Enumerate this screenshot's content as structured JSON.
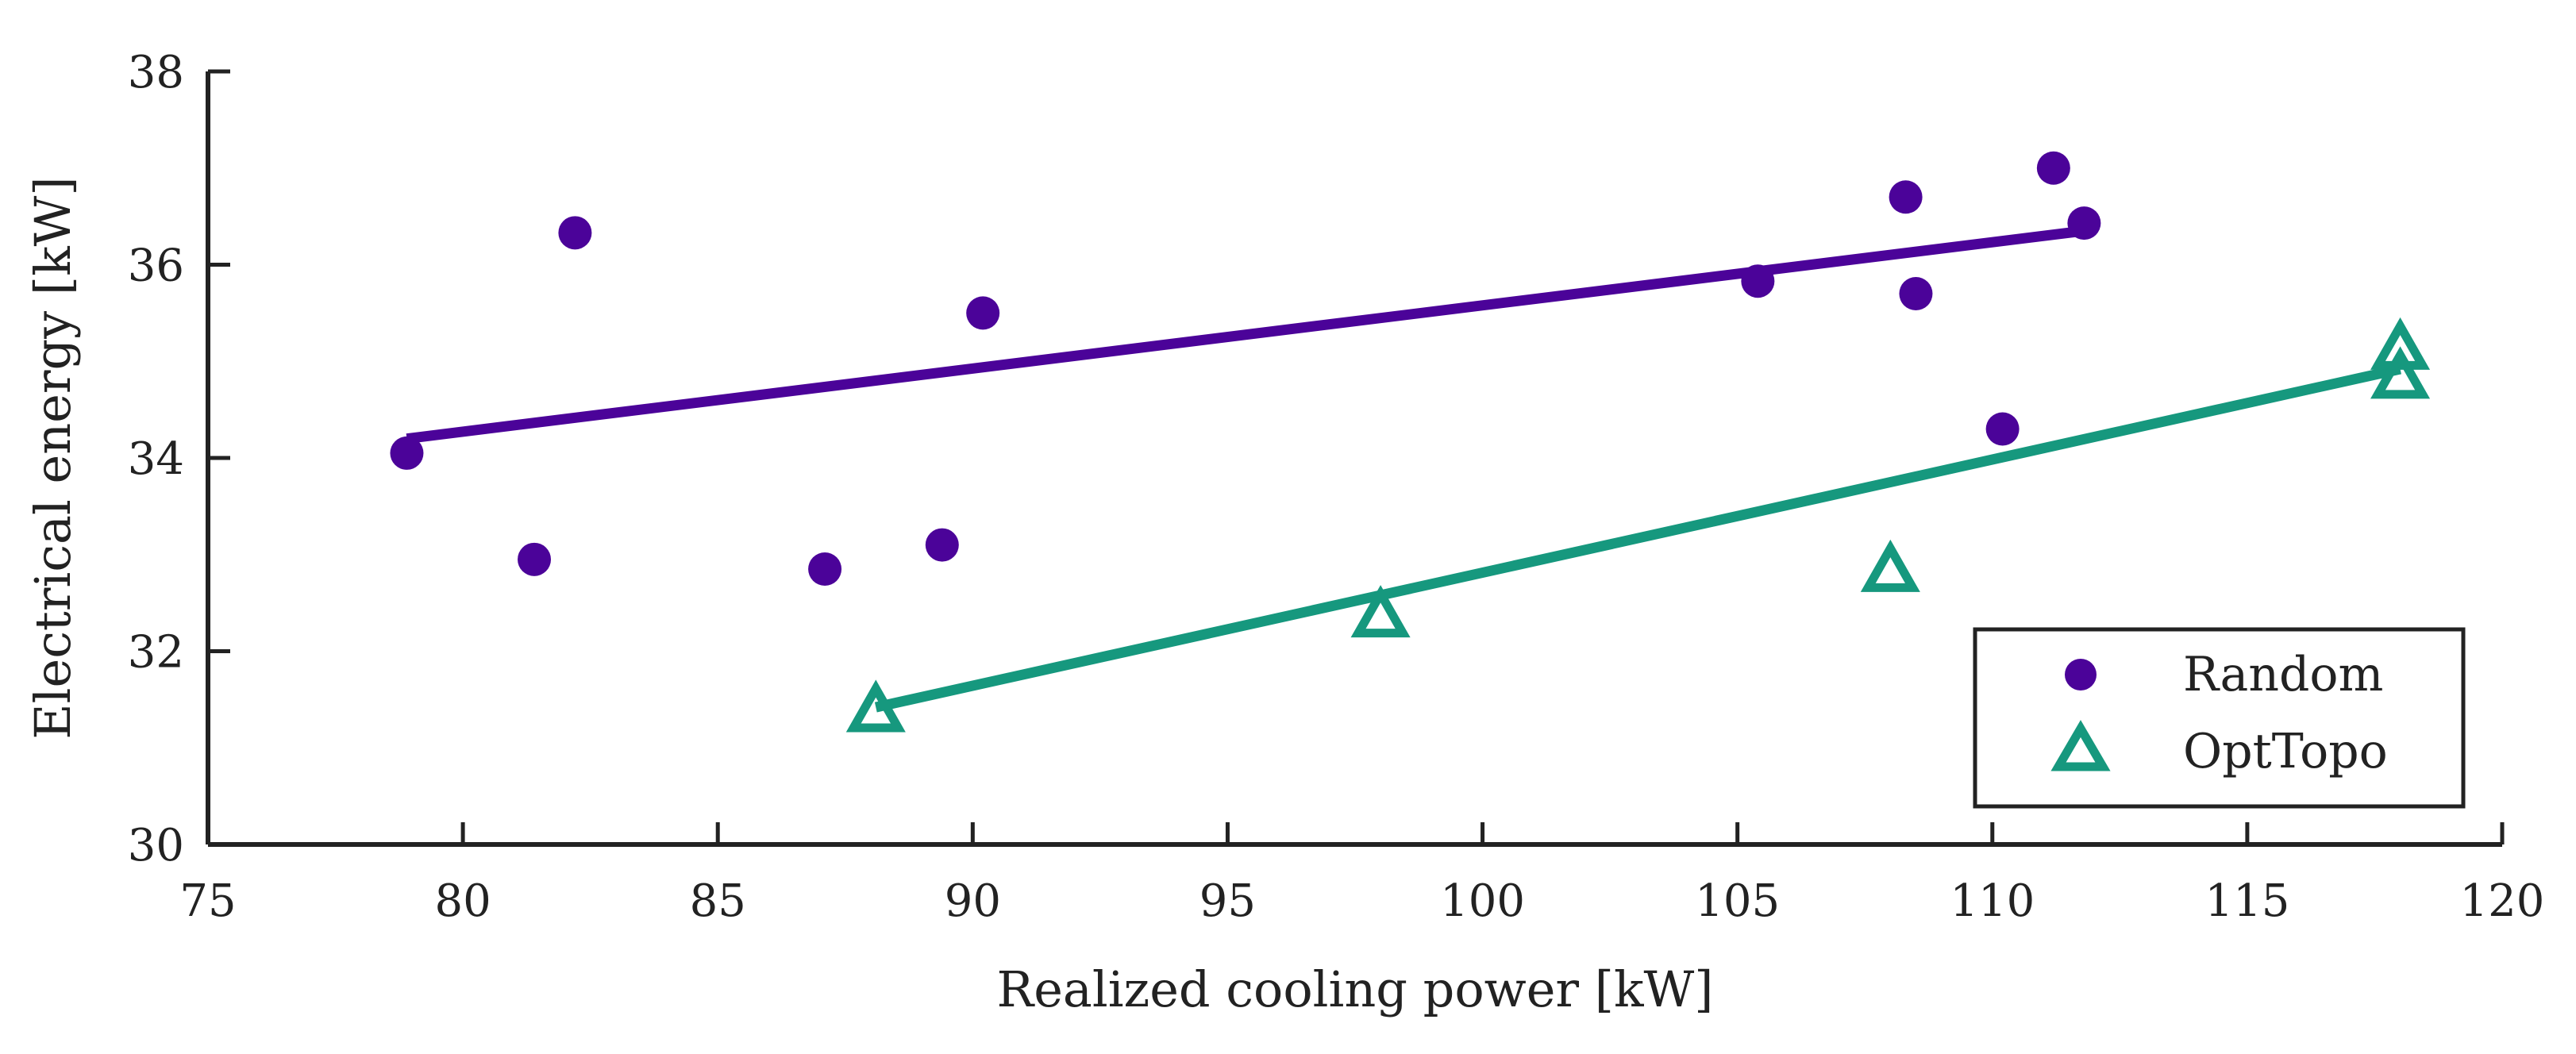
{
  "chart_data": {
    "type": "scatter",
    "title": "",
    "xlabel": "Realized cooling power [kW]",
    "ylabel": "Electrical energy [kW]",
    "xlim": [
      75,
      120
    ],
    "ylim": [
      30,
      38
    ],
    "xticks": [
      "75",
      "80",
      "85",
      "90",
      "95",
      "100",
      "105",
      "110",
      "115",
      "120"
    ],
    "yticks": [
      "30",
      "32",
      "34",
      "36",
      "38"
    ],
    "grid": false,
    "legend_position": "bottom-right",
    "series": [
      {
        "name": "Random",
        "marker": "circle",
        "color": "#4B0399",
        "points": [
          {
            "x": 78.9,
            "y": 34.05
          },
          {
            "x": 81.4,
            "y": 32.95
          },
          {
            "x": 82.2,
            "y": 36.33
          },
          {
            "x": 87.1,
            "y": 32.85
          },
          {
            "x": 89.4,
            "y": 33.1
          },
          {
            "x": 90.2,
            "y": 35.5
          },
          {
            "x": 105.4,
            "y": 35.83
          },
          {
            "x": 108.3,
            "y": 36.7
          },
          {
            "x": 108.5,
            "y": 35.7
          },
          {
            "x": 110.2,
            "y": 34.3
          },
          {
            "x": 111.2,
            "y": 37.0
          },
          {
            "x": 111.8,
            "y": 36.43
          }
        ],
        "fit": {
          "x1": 78.9,
          "y1": 34.2,
          "x2": 111.8,
          "y2": 36.35
        }
      },
      {
        "name": "OptTopo",
        "marker": "triangle",
        "color": "#16987E",
        "points": [
          {
            "x": 88.1,
            "y": 31.4
          },
          {
            "x": 98.0,
            "y": 32.38
          },
          {
            "x": 108.0,
            "y": 32.85
          },
          {
            "x": 118.0,
            "y": 35.15
          },
          {
            "x": 118.0,
            "y": 34.85
          }
        ],
        "fit": {
          "x1": 88.1,
          "y1": 31.42,
          "x2": 118.0,
          "y2": 34.92
        }
      }
    ]
  }
}
